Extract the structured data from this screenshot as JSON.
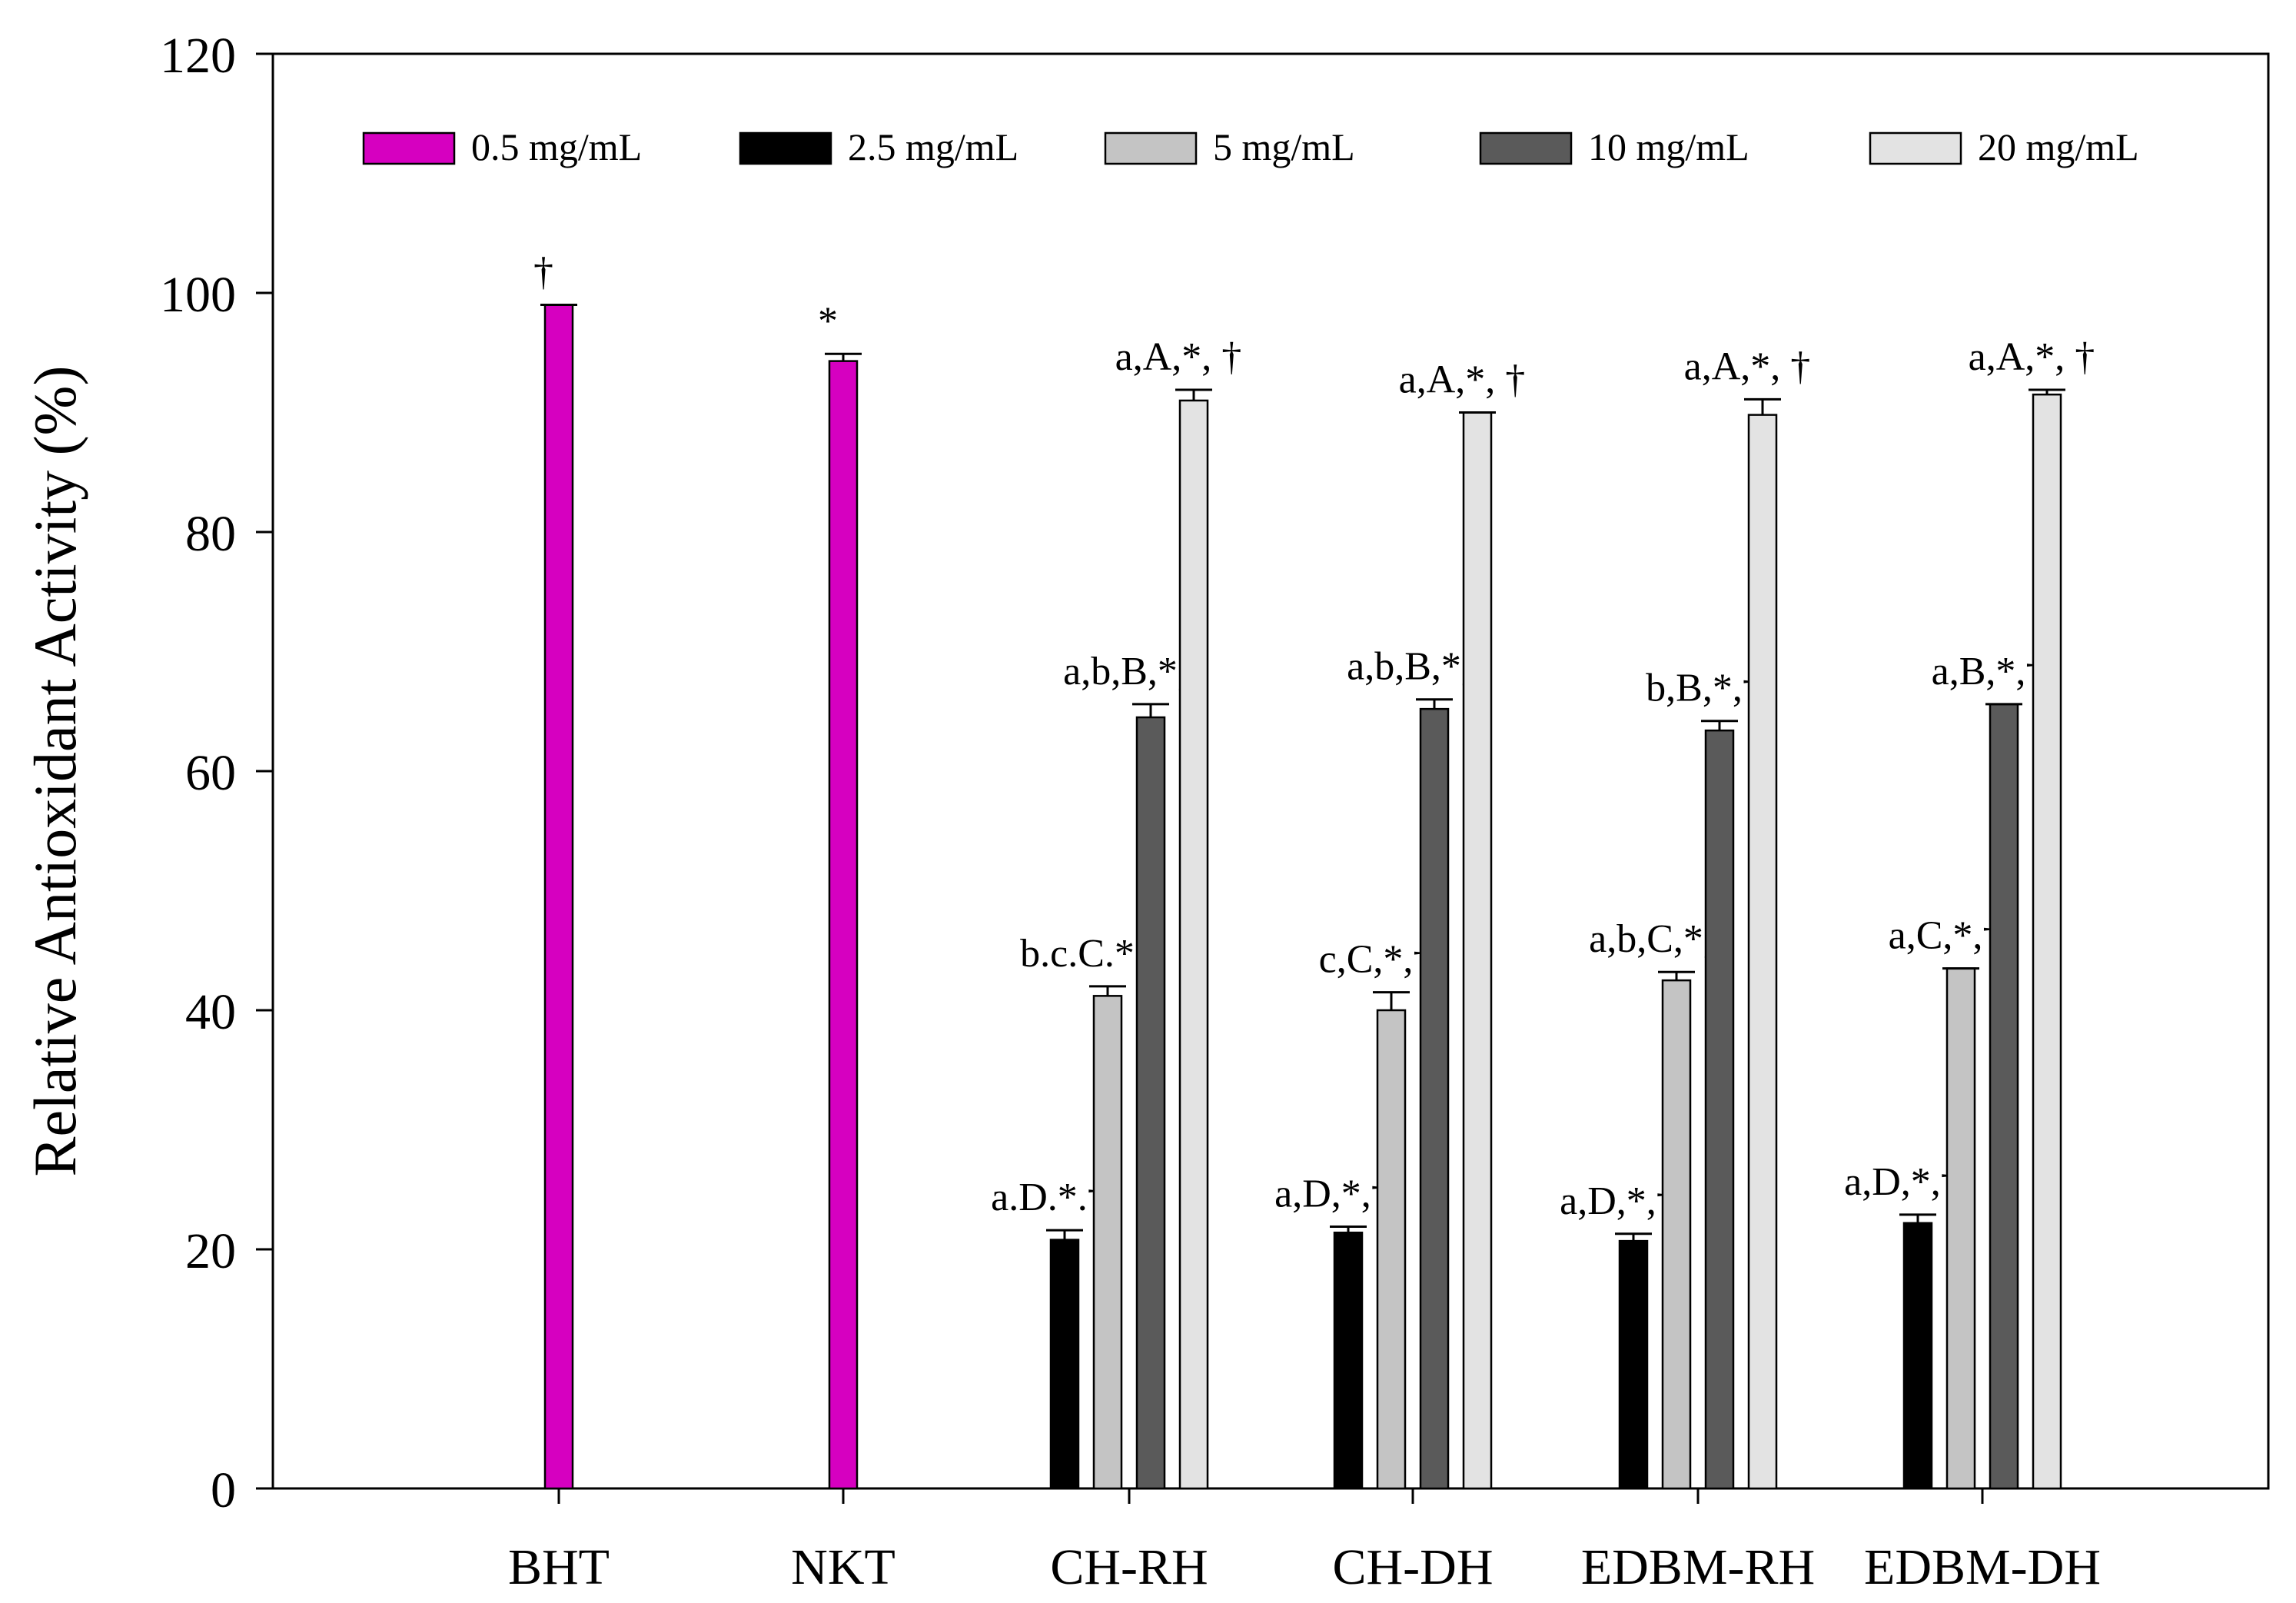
{
  "chart_data": {
    "type": "bar",
    "title": "",
    "xlabel": "",
    "ylabel": "Relative Antioxidant Activity (%)",
    "ylim": [
      0,
      120
    ],
    "yticks": [
      0,
      20,
      40,
      60,
      80,
      100,
      120
    ],
    "categories": [
      "BHT",
      "NKT",
      "CH-RH",
      "CH-DH",
      "EDBM-RH",
      "EDBM-DH"
    ],
    "series": [
      {
        "name": "0.5 mg/mL",
        "color": "#d600c0",
        "values": [
          99,
          94.3,
          null,
          null,
          null,
          null
        ],
        "errors": [
          0,
          0.6,
          null,
          null,
          null,
          null
        ],
        "labels": [
          "†",
          "*",
          null,
          null,
          null,
          null
        ]
      },
      {
        "name": "2.5 mg/mL",
        "color": "#000000",
        "values": [
          null,
          null,
          20.8,
          21.4,
          20.7,
          22.2
        ],
        "errors": [
          null,
          null,
          0.8,
          0.5,
          0.6,
          0.7
        ],
        "labels": [
          null,
          null,
          "a.D.*.†",
          "a,D,*,†",
          "a,D,*,†",
          "a,D,*,†"
        ]
      },
      {
        "name": "5 mg/mL",
        "color": "#c4c4c4",
        "values": [
          null,
          null,
          41.2,
          40,
          42.5,
          43.5
        ],
        "errors": [
          null,
          null,
          0.8,
          1.5,
          0.7,
          0
        ],
        "labels": [
          null,
          null,
          "b.c.C.*.†",
          "c,C,*,†",
          "a,b,C,*,†",
          "a,C,*,†"
        ]
      },
      {
        "name": "10 mg/mL",
        "color": "#5a5a5a",
        "values": [
          null,
          null,
          64.5,
          65.2,
          63.4,
          65.6
        ],
        "errors": [
          null,
          null,
          1.1,
          0.8,
          0.8,
          0
        ],
        "labels": [
          null,
          null,
          "a,b,B,*,†",
          "a,b,B,*,†",
          "b,B,*,†",
          "a,B,*,†"
        ]
      },
      {
        "name": "20 mg/mL",
        "color": "#e3e3e3",
        "values": [
          null,
          null,
          91,
          90,
          89.8,
          91.5
        ],
        "errors": [
          null,
          null,
          0.9,
          0,
          1.3,
          0.4
        ],
        "labels": [
          null,
          null,
          "a,A,*, †",
          "a,A,*, †",
          "a,A,*, †",
          "a,A,*, †"
        ]
      }
    ],
    "legend_position": "top"
  }
}
